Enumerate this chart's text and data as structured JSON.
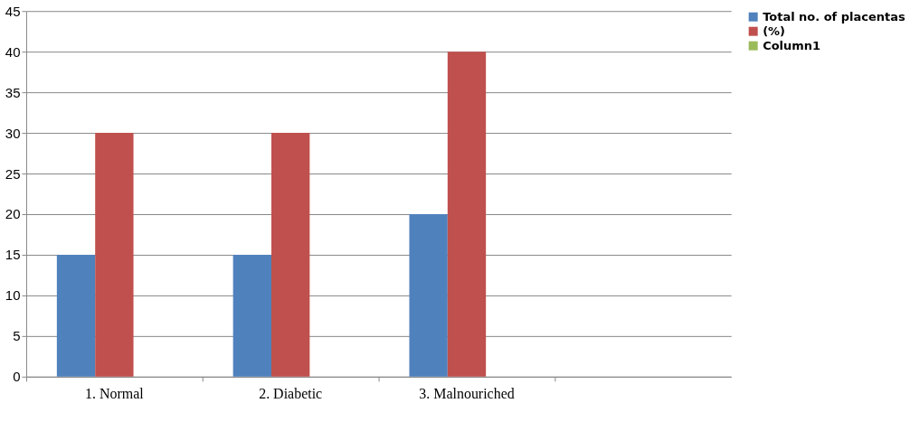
{
  "chart_data": {
    "type": "bar",
    "categories": [
      "1. Normal",
      "2. Diabetic",
      "3. Malnouriched",
      null
    ],
    "series": [
      {
        "name": "Total no. of placentas",
        "color": "#4f81bd",
        "values": [
          15,
          15,
          20,
          null
        ]
      },
      {
        "name": "(%)",
        "color": "#c0504d",
        "values": [
          30,
          30,
          40,
          null
        ]
      },
      {
        "name": "Column1",
        "color": "#9bbb59",
        "values": [
          null,
          null,
          null,
          null
        ]
      }
    ],
    "ylim": [
      0,
      45
    ],
    "yticks": [
      0,
      5,
      10,
      15,
      20,
      25,
      30,
      35,
      40,
      45
    ],
    "grid": "y",
    "legend": "right"
  }
}
